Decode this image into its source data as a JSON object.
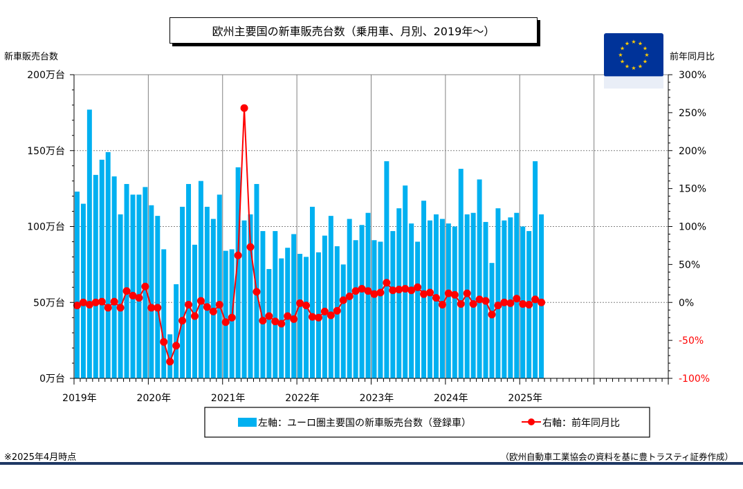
{
  "title": "欧州主要国の新車販売台数（乗用車、月別、2019年～）",
  "footnote_left": "※2025年4月時点",
  "footnote_right": "（欧州自動車工業協会の資料を基に豊トラスティ証券作成）",
  "colors": {
    "bar": "#00b0f0",
    "line": "#ff0000",
    "marker": "#ff0000",
    "negative_tick": "#ff0000",
    "rule": "#1f3864",
    "flag_bg": "#003399",
    "flag_star": "#ffcc00"
  },
  "icons": {
    "flag": "eu-flag-icon"
  },
  "chart_data": {
    "type": "bar+line",
    "ylabel_left": "新車販売台数",
    "ylabel_right": "前年同月比",
    "y_left_ticks": [
      "0万台",
      "50万台",
      "100万台",
      "150万台",
      "200万台"
    ],
    "y_left_range": [
      0,
      200
    ],
    "y_right_ticks": [
      "-100%",
      "-50%",
      "0%",
      "50%",
      "100%",
      "150%",
      "200%",
      "250%",
      "300%"
    ],
    "y_right_range": [
      -100,
      300
    ],
    "x_labels": [
      "2019年",
      "2020年",
      "2021年",
      "2022年",
      "2023年",
      "2024年",
      "2025年"
    ],
    "x_range_months": [
      "2019-01",
      "2026-12"
    ],
    "grid_vertical_at_years": true,
    "legend_position": "bottom",
    "series": [
      {
        "name": "左軸：ユーロ圏主要国の新車販売台数（登録車）",
        "type": "bar",
        "axis": "left",
        "unit": "万台",
        "start": "2019-01",
        "values": [
          123,
          115,
          177,
          134,
          144,
          149,
          133,
          108,
          128,
          121,
          121,
          126,
          114,
          107,
          85,
          29,
          62,
          113,
          128,
          88,
          130,
          113,
          105,
          121,
          84,
          85,
          139,
          104,
          108,
          128,
          97,
          72,
          97,
          79,
          86,
          95,
          82,
          80,
          113,
          83,
          94,
          107,
          87,
          75,
          105,
          91,
          101,
          109,
          91,
          90,
          143,
          97,
          112,
          127,
          102,
          90,
          117,
          104,
          108,
          105,
          102,
          100,
          138,
          108,
          109,
          131,
          103,
          76,
          112,
          104,
          106,
          109,
          100,
          97,
          143,
          108
        ]
      },
      {
        "name": "右軸：前年同月比",
        "type": "line",
        "axis": "right",
        "unit": "%",
        "start": "2019-01",
        "values": [
          -4,
          0,
          -3,
          0,
          1,
          -7,
          1,
          -7,
          15,
          9,
          6,
          21,
          -7,
          -7,
          -52,
          -78,
          -57,
          -24,
          -3,
          -18,
          2,
          -6,
          -12,
          -3,
          -26,
          -20,
          62,
          256,
          73,
          14,
          -24,
          -18,
          -25,
          -28,
          -18,
          -22,
          -1,
          -4,
          -19,
          -20,
          -12,
          -17,
          -11,
          3,
          8,
          15,
          18,
          15,
          11,
          13,
          26,
          16,
          17,
          18,
          16,
          20,
          11,
          13,
          6,
          -3,
          12,
          10,
          -2,
          12,
          -2,
          4,
          2,
          -16,
          -4,
          0,
          -1,
          5,
          -2,
          -3,
          4,
          0
        ]
      }
    ]
  }
}
